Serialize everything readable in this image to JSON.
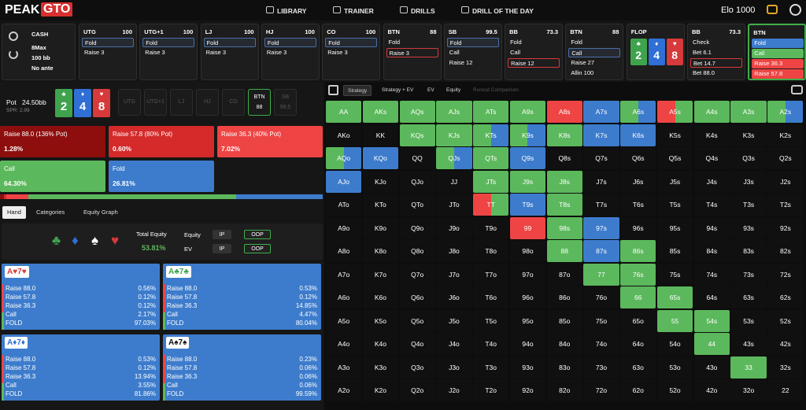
{
  "nav": {
    "logo_a": "PEAK",
    "logo_b": "GTO",
    "items": [
      "LIBRARY",
      "TRAINER",
      "DRILLS",
      "DRILL OF THE DAY"
    ],
    "elo": "Elo 1000"
  },
  "game": [
    "CASH",
    "8Max",
    "100 bb",
    "No ante"
  ],
  "actions": [
    {
      "pos": "UTG",
      "stack": "100",
      "options": [
        {
          "label": "Fold",
          "state": "selected"
        },
        {
          "label": "Raise 3"
        }
      ]
    },
    {
      "pos": "UTG+1",
      "stack": "100",
      "options": [
        {
          "label": "Fold",
          "state": "selected"
        },
        {
          "label": "Raise 3"
        }
      ]
    },
    {
      "pos": "LJ",
      "stack": "100",
      "options": [
        {
          "label": "Fold",
          "state": "selected"
        },
        {
          "label": "Raise 3"
        }
      ]
    },
    {
      "pos": "HJ",
      "stack": "100",
      "options": [
        {
          "label": "Fold",
          "state": "selected"
        },
        {
          "label": "Raise 3"
        }
      ]
    },
    {
      "pos": "CO",
      "stack": "100",
      "options": [
        {
          "label": "Fold",
          "state": "selected"
        },
        {
          "label": "Raise 3"
        }
      ]
    },
    {
      "pos": "BTN",
      "stack": "88",
      "options": [
        {
          "label": "Fold"
        },
        {
          "label": "Raise 3",
          "state": "chosen"
        }
      ]
    },
    {
      "pos": "SB",
      "stack": "99.5",
      "options": [
        {
          "label": "Fold",
          "state": "selected"
        },
        {
          "label": "Call"
        },
        {
          "label": "Raise 12"
        }
      ]
    },
    {
      "pos": "BB",
      "stack": "73.3",
      "options": [
        {
          "label": "Fold"
        },
        {
          "label": "Call"
        },
        {
          "label": "Raise 12",
          "state": "chosen"
        }
      ]
    },
    {
      "pos": "BTN",
      "stack": "88",
      "options": [
        {
          "label": "Fold"
        },
        {
          "label": "Call",
          "state": "selected"
        },
        {
          "label": "Raise 27"
        },
        {
          "label": "Allin 100"
        }
      ]
    },
    {
      "pos": "FLOP",
      "cards": [
        {
          "rank": "2",
          "suit": "♣",
          "color": "#3fa34d"
        },
        {
          "rank": "4",
          "suit": "♦",
          "color": "#2f6fd6"
        },
        {
          "rank": "8",
          "suit": "♥",
          "color": "#d63a3a"
        }
      ]
    },
    {
      "pos": "BB",
      "stack": "73.3",
      "options": [
        {
          "label": "Check"
        },
        {
          "label": "Bet 6.1"
        },
        {
          "label": "Bet 14.7",
          "state": "chosen"
        },
        {
          "label": "Bet 88.0"
        }
      ]
    },
    {
      "pos": "BTN",
      "active": true,
      "options": [
        {
          "label": "Fold",
          "color": "#3d7ccc"
        },
        {
          "label": "Call",
          "color": "#5cb85c"
        },
        {
          "label": "Raise 36.3",
          "color": "#ef4444"
        },
        {
          "label": "Raise 57.8",
          "color": "#ef4444"
        }
      ]
    }
  ],
  "pot": {
    "label": "Pot",
    "value": "24.50bb",
    "spr": "SPR: 2.99",
    "seats": [
      {
        "pos": "UTG"
      },
      {
        "pos": "UTG+1"
      },
      {
        "pos": "LJ"
      },
      {
        "pos": "HJ"
      },
      {
        "pos": "CO"
      },
      {
        "pos": "BTN",
        "stack": "88",
        "active": true
      },
      {
        "pos": "SB",
        "stack": "99.5"
      }
    ]
  },
  "strategy": [
    {
      "label": "Raise 88.0 (136% Pot)",
      "value": 1.28,
      "value_label": "1.28%",
      "color": "#8e0e0e"
    },
    {
      "label": "Raise 57.8 (80% Pot)",
      "value": 0.6,
      "value_label": "0.60%",
      "color": "#d42a2a"
    },
    {
      "label": "Raise 36.3 (40% Pot)",
      "value": 7.02,
      "value_label": "7.02%",
      "color": "#ef4444"
    },
    {
      "label": "Call",
      "value": 64.3,
      "value_label": "64.30%",
      "color": "#5cb85c"
    },
    {
      "label": "Fold",
      "value": 26.81,
      "value_label": "26.81%",
      "color": "#3d7ccc"
    }
  ],
  "tabs": [
    "Hand",
    "Categories",
    "Equity Graph"
  ],
  "equity": {
    "suits": [
      {
        "s": "♣",
        "color": "#3fa34d"
      },
      {
        "s": "♦",
        "color": "#2f6fd6"
      },
      {
        "s": "♠",
        "color": "#ffffff"
      },
      {
        "s": "♥",
        "color": "#d63a3a"
      }
    ],
    "total_label": "Total Equity",
    "total": "53.81%",
    "rows": [
      {
        "label": "Equity",
        "ip": "IP",
        "oop": "OOP"
      },
      {
        "label": "EV",
        "ip": "IP",
        "oop": "OOP"
      }
    ]
  },
  "hands": [
    {
      "label": "A♥7♥",
      "color": "#d63a3a",
      "rows": [
        {
          "action": "Raise 88.0",
          "pct": "0.56%"
        },
        {
          "action": "Raise 57.8",
          "pct": "0.12%"
        },
        {
          "action": "Raise 36.3",
          "pct": "0.12%"
        },
        {
          "action": "Call",
          "pct": "2.17%"
        },
        {
          "action": "FOLD",
          "pct": "97.03%"
        }
      ]
    },
    {
      "label": "A♣7♣",
      "color": "#3fa34d",
      "rows": [
        {
          "action": "Raise 88.0",
          "pct": "0.53%"
        },
        {
          "action": "Raise 57.8",
          "pct": "0.12%"
        },
        {
          "action": "Raise 36.3",
          "pct": "14.85%"
        },
        {
          "action": "Call",
          "pct": "4.47%"
        },
        {
          "action": "FOLD",
          "pct": "80.04%"
        }
      ]
    },
    {
      "label": "A♦7♦",
      "color": "#2f6fd6",
      "rows": [
        {
          "action": "Raise 88.0",
          "pct": "0.53%"
        },
        {
          "action": "Raise 57.8",
          "pct": "0.12%"
        },
        {
          "action": "Raise 36.3",
          "pct": "13.94%"
        },
        {
          "action": "Call",
          "pct": "3.55%"
        },
        {
          "action": "FOLD",
          "pct": "81.86%"
        }
      ]
    },
    {
      "label": "A♠7♠",
      "color": "#111111",
      "rows": [
        {
          "action": "Raise 88.0",
          "pct": "0.23%"
        },
        {
          "action": "Raise 57.8",
          "pct": "0.06%"
        },
        {
          "action": "Raise 36.3",
          "pct": "0.06%"
        },
        {
          "action": "Call",
          "pct": "0.06%"
        },
        {
          "action": "FOLD",
          "pct": "99.59%"
        }
      ]
    }
  ],
  "view_tabs": [
    "Strategy",
    "Strategy + EV",
    "EV",
    "Equity",
    "Runout Comparison"
  ],
  "matrix": {
    "fill_colors": {
      "g": "#5cb85c",
      "b": "#3d7ccc",
      "r": "#ef4444"
    },
    "labels": [
      [
        "AA",
        "AKs",
        "AQs",
        "AJs",
        "ATs",
        "A9s",
        "A8s",
        "A7s",
        "A6s",
        "A5s",
        "A4s",
        "A3s",
        "A2s"
      ],
      [
        "AKo",
        "KK",
        "KQs",
        "KJs",
        "KTs",
        "K9s",
        "K8s",
        "K7s",
        "K6s",
        "K5s",
        "K4s",
        "K3s",
        "K2s"
      ],
      [
        "AQo",
        "KQo",
        "QQ",
        "QJs",
        "QTs",
        "Q9s",
        "Q8s",
        "Q7s",
        "Q6s",
        "Q5s",
        "Q4s",
        "Q3s",
        "Q2s"
      ],
      [
        "AJo",
        "KJo",
        "QJo",
        "JJ",
        "JTs",
        "J9s",
        "J8s",
        "J7s",
        "J6s",
        "J5s",
        "J4s",
        "J3s",
        "J2s"
      ],
      [
        "ATo",
        "KTo",
        "QTo",
        "JTo",
        "TT",
        "T9s",
        "T8s",
        "T7s",
        "T6s",
        "T5s",
        "T4s",
        "T3s",
        "T2s"
      ],
      [
        "A9o",
        "K9o",
        "Q9o",
        "J9o",
        "T9o",
        "99",
        "98s",
        "97s",
        "96s",
        "95s",
        "94s",
        "93s",
        "92s"
      ],
      [
        "A8o",
        "K8o",
        "Q8o",
        "J8o",
        "T8o",
        "98o",
        "88",
        "87s",
        "86s",
        "85s",
        "84s",
        "83s",
        "82s"
      ],
      [
        "A7o",
        "K7o",
        "Q7o",
        "J7o",
        "T7o",
        "97o",
        "87o",
        "77",
        "76s",
        "75s",
        "74s",
        "73s",
        "72s"
      ],
      [
        "A6o",
        "K6o",
        "Q6o",
        "J6o",
        "T6o",
        "96o",
        "86o",
        "76o",
        "66",
        "65s",
        "64s",
        "63s",
        "62s"
      ],
      [
        "A5o",
        "K5o",
        "Q5o",
        "J5o",
        "T5o",
        "95o",
        "85o",
        "75o",
        "65o",
        "55",
        "54s",
        "53s",
        "52s"
      ],
      [
        "A4o",
        "K4o",
        "Q4o",
        "J4o",
        "T4o",
        "94o",
        "84o",
        "74o",
        "64o",
        "54o",
        "44",
        "43s",
        "42s"
      ],
      [
        "A3o",
        "K3o",
        "Q3o",
        "J3o",
        "T3o",
        "93o",
        "83o",
        "73o",
        "63o",
        "53o",
        "43o",
        "33",
        "32s"
      ],
      [
        "A2o",
        "K2o",
        "Q2o",
        "J2o",
        "T2o",
        "92o",
        "82o",
        "72o",
        "62o",
        "52o",
        "42o",
        "32o",
        "22"
      ]
    ],
    "fills": [
      [
        "g",
        "g",
        "g",
        "g",
        "g",
        "g",
        "r",
        "b",
        "gb",
        "rg",
        "g",
        "g",
        "gb"
      ],
      [
        "",
        "",
        "g",
        "g",
        "gb",
        "gb",
        "g",
        "b",
        "b",
        "",
        "",
        "",
        ""
      ],
      [
        "gb",
        "b",
        "",
        "gb",
        "g",
        "b",
        "",
        "",
        "",
        "",
        "",
        "",
        ""
      ],
      [
        "b",
        "",
        "",
        "",
        "g",
        "g",
        "g",
        "",
        "",
        "",
        "",
        "",
        ""
      ],
      [
        "",
        "",
        "",
        "",
        "rg",
        "b",
        "g",
        "",
        "",
        "",
        "",
        "",
        ""
      ],
      [
        "",
        "",
        "",
        "",
        "",
        "r",
        "g",
        "b",
        "",
        "",
        "",
        "",
        ""
      ],
      [
        "",
        "",
        "",
        "",
        "",
        "",
        "g",
        "b",
        "g",
        "",
        "",
        "",
        ""
      ],
      [
        "",
        "",
        "",
        "",
        "",
        "",
        "",
        "g",
        "g",
        "",
        "",
        "",
        ""
      ],
      [
        "",
        "",
        "",
        "",
        "",
        "",
        "",
        "",
        "g",
        "g",
        "",
        "",
        ""
      ],
      [
        "",
        "",
        "",
        "",
        "",
        "",
        "",
        "",
        "",
        "g",
        "g",
        "",
        ""
      ],
      [
        "",
        "",
        "",
        "",
        "",
        "",
        "",
        "",
        "",
        "",
        "g",
        "",
        ""
      ],
      [
        "",
        "",
        "",
        "",
        "",
        "",
        "",
        "",
        "",
        "",
        "",
        "g",
        ""
      ],
      [
        "",
        "",
        "",
        "",
        "",
        "",
        "",
        "",
        "",
        "",
        "",
        "",
        ""
      ]
    ]
  }
}
